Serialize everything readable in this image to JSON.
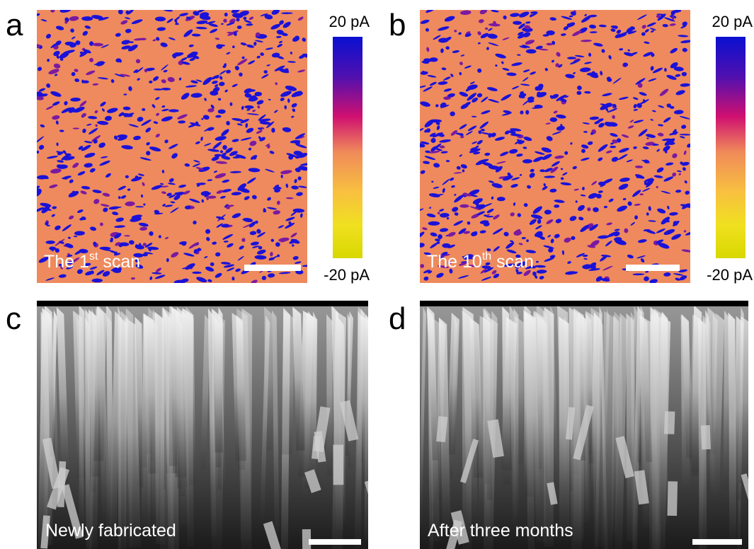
{
  "panels": [
    {
      "letter": "a",
      "caption": [
        "The 1",
        "st",
        " scan"
      ],
      "colorbar": {
        "top": "20 pA",
        "bottom": "-20 pA"
      }
    },
    {
      "letter": "b",
      "caption": [
        "The 10",
        "th",
        " scan"
      ],
      "colorbar": {
        "top": "20 pA",
        "bottom": "-20 pA"
      }
    },
    {
      "letter": "c",
      "caption": [
        "Newly fabricated"
      ]
    },
    {
      "letter": "d",
      "caption": [
        "After three months"
      ]
    }
  ]
}
